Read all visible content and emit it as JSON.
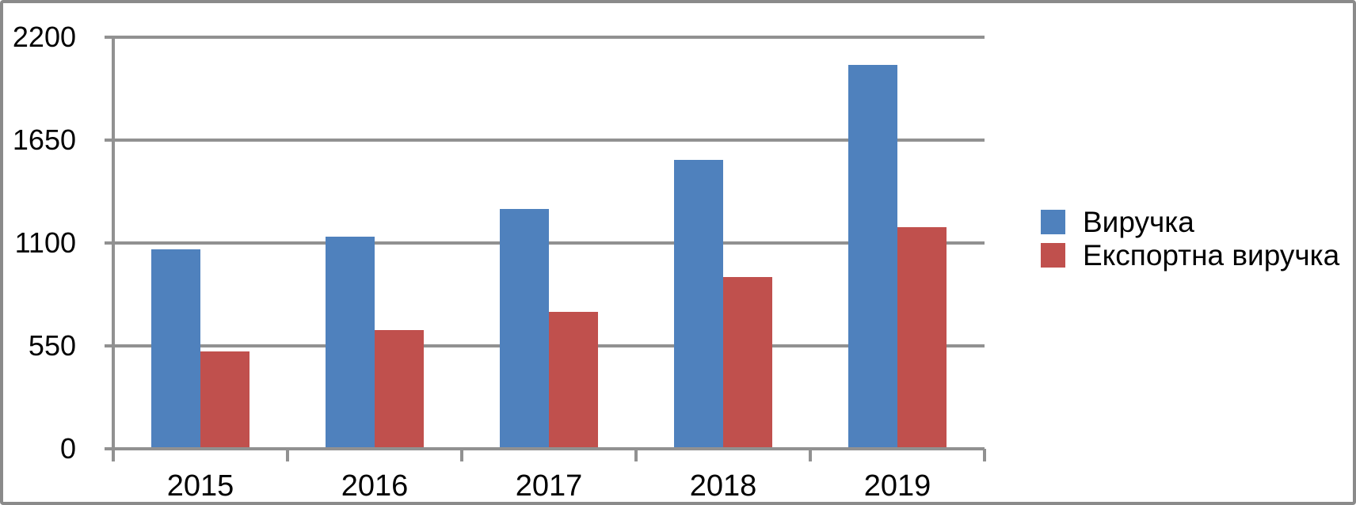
{
  "chart_data": {
    "type": "bar",
    "title": "",
    "xlabel": "",
    "ylabel": "",
    "categories": [
      "2015",
      "2016",
      "2017",
      "2018",
      "2019"
    ],
    "series": [
      {
        "name": "Виручка",
        "color": "#4F81BD",
        "values": [
          1060,
          1130,
          1280,
          1540,
          2050
        ]
      },
      {
        "name": "Експортна виручка",
        "color": "#C0504D",
        "values": [
          515,
          630,
          725,
          915,
          1180
        ]
      }
    ],
    "ylim": [
      0,
      2200
    ],
    "yticks": [
      0,
      550,
      1100,
      1650,
      2200
    ],
    "ytick_labels": [
      "0",
      "550",
      "1100",
      "1650",
      "2200"
    ],
    "grid": true,
    "legend_position": "right",
    "grid_color": "#919191"
  }
}
